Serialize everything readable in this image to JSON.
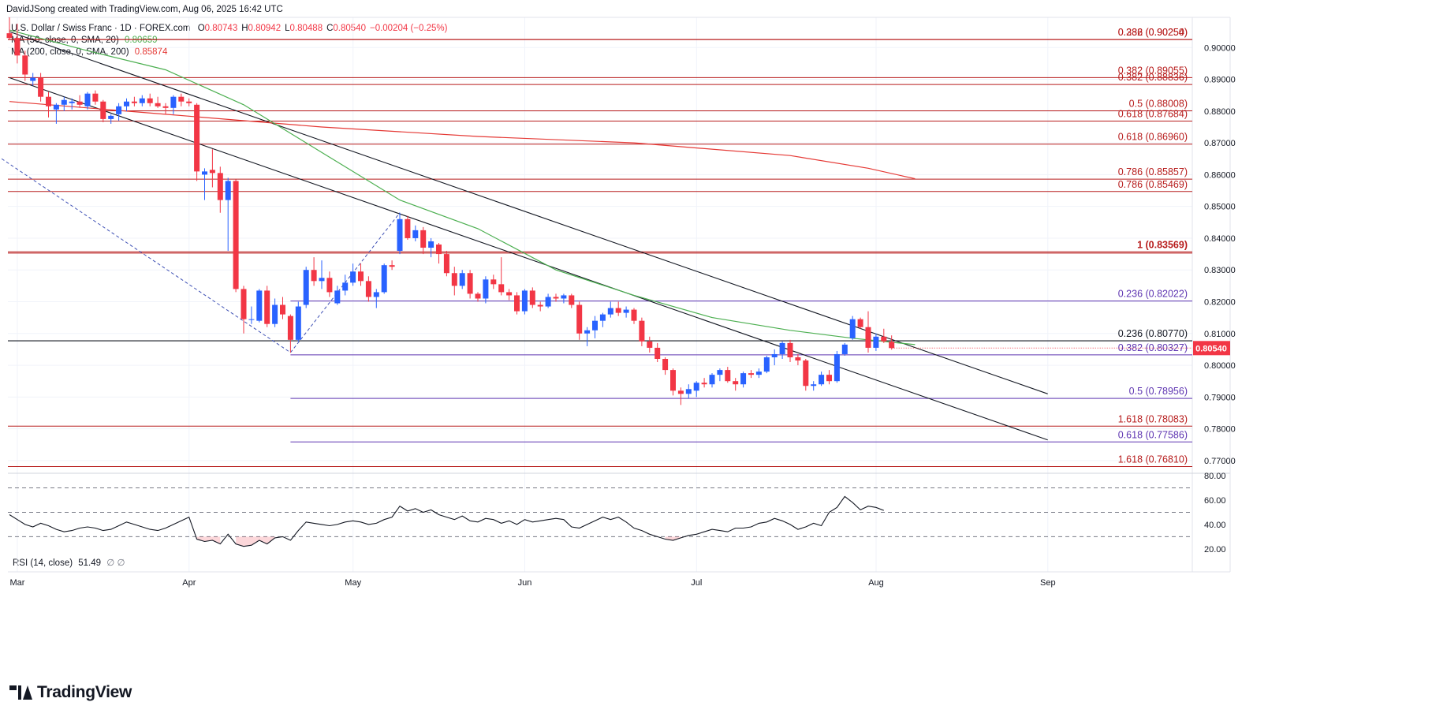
{
  "header": {
    "credit": "DavidJSong created with TradingView.com, Aug 06, 2025 16:42 UTC"
  },
  "legend": {
    "symbol": "U.S. Dollar / Swiss Franc · 1D · FOREX.com",
    "ohlc": [
      {
        "k": "O",
        "v": "0.80743"
      },
      {
        "k": "H",
        "v": "0.80942"
      },
      {
        "k": "L",
        "v": "0.80488"
      },
      {
        "k": "C",
        "v": "0.80540"
      },
      {
        "k": "",
        "v": "−0.00204 (−0.25%)"
      }
    ],
    "sma50": {
      "label": "MA (50, close, 0, SMA, 20)",
      "value": "0.80659",
      "color": "#4caf50"
    },
    "sma200": {
      "label": "MA (200, close, 0, SMA, 200)",
      "value": "0.85874",
      "color": "#e53935"
    }
  },
  "colors": {
    "up": "#2962ff",
    "down": "#f23645",
    "sma50": "#4caf50",
    "sma200": "#e53935",
    "fib_red": "#b71c1c",
    "fib_purple": "#5e35b1",
    "trend": "#131722",
    "rsi": "#131722",
    "grid": "#f0f3fa",
    "axis_text": "#131722",
    "price_badge": "#f23645"
  },
  "chart_data": {
    "type": "candlestick",
    "x_tick_labels": [
      "Mar",
      "Apr",
      "May",
      "Jun",
      "Jul",
      "Aug",
      "Sep"
    ],
    "y_tick_labels": [
      "0.77000",
      "0.78000",
      "0.79000",
      "0.80000",
      "0.81000",
      "0.82000",
      "0.83000",
      "0.84000",
      "0.85000",
      "0.86000",
      "0.87000",
      "0.88000",
      "0.89000",
      "0.90000"
    ],
    "ylim": [
      0.7665,
      0.9095
    ],
    "last_price": "0.80540",
    "candles": [
      [
        0.9045,
        0.9095,
        0.9025,
        0.903
      ],
      [
        0.903,
        0.9075,
        0.895,
        0.8975
      ],
      [
        0.8975,
        0.899,
        0.8895,
        0.8915
      ],
      [
        0.8895,
        0.892,
        0.888,
        0.8905
      ],
      [
        0.8905,
        0.892,
        0.883,
        0.8845
      ],
      [
        0.8845,
        0.886,
        0.878,
        0.8815
      ],
      [
        0.8805,
        0.8825,
        0.876,
        0.882
      ],
      [
        0.882,
        0.8845,
        0.88,
        0.8835
      ],
      [
        0.8825,
        0.884,
        0.8805,
        0.883
      ],
      [
        0.883,
        0.885,
        0.881,
        0.882
      ],
      [
        0.8815,
        0.886,
        0.8805,
        0.8855
      ],
      [
        0.8855,
        0.8865,
        0.882,
        0.883
      ],
      [
        0.883,
        0.8835,
        0.8765,
        0.8775
      ],
      [
        0.8775,
        0.879,
        0.876,
        0.8785
      ],
      [
        0.879,
        0.8825,
        0.877,
        0.8815
      ],
      [
        0.8815,
        0.884,
        0.88,
        0.883
      ],
      [
        0.883,
        0.8845,
        0.8815,
        0.8825
      ],
      [
        0.8825,
        0.885,
        0.8815,
        0.884
      ],
      [
        0.884,
        0.8855,
        0.8815,
        0.8825
      ],
      [
        0.8825,
        0.8845,
        0.881,
        0.8815
      ],
      [
        0.8815,
        0.8825,
        0.879,
        0.881
      ],
      [
        0.881,
        0.885,
        0.879,
        0.8845
      ],
      [
        0.8845,
        0.8855,
        0.8815,
        0.883
      ],
      [
        0.883,
        0.884,
        0.8815,
        0.8825
      ],
      [
        0.882,
        0.8825,
        0.858,
        0.861
      ],
      [
        0.86,
        0.862,
        0.852,
        0.861
      ],
      [
        0.8615,
        0.868,
        0.856,
        0.8605
      ],
      [
        0.8605,
        0.8625,
        0.848,
        0.852
      ],
      [
        0.852,
        0.859,
        0.836,
        0.858
      ],
      [
        0.858,
        0.8585,
        0.823,
        0.824
      ],
      [
        0.824,
        0.825,
        0.81,
        0.8145
      ],
      [
        0.8145,
        0.8185,
        0.813,
        0.8145
      ],
      [
        0.814,
        0.824,
        0.8135,
        0.8235
      ],
      [
        0.8235,
        0.825,
        0.812,
        0.813
      ],
      [
        0.813,
        0.821,
        0.812,
        0.819
      ],
      [
        0.819,
        0.8215,
        0.8145,
        0.816
      ],
      [
        0.8155,
        0.816,
        0.804,
        0.808
      ],
      [
        0.808,
        0.82,
        0.8075,
        0.8185
      ],
      [
        0.819,
        0.831,
        0.818,
        0.83
      ],
      [
        0.83,
        0.834,
        0.825,
        0.8265
      ],
      [
        0.8265,
        0.833,
        0.824,
        0.8275
      ],
      [
        0.8275,
        0.8295,
        0.8215,
        0.823
      ],
      [
        0.8195,
        0.825,
        0.819,
        0.8235
      ],
      [
        0.8235,
        0.8285,
        0.822,
        0.826
      ],
      [
        0.826,
        0.832,
        0.825,
        0.8295
      ],
      [
        0.8295,
        0.832,
        0.825,
        0.8265
      ],
      [
        0.8265,
        0.828,
        0.82,
        0.8215
      ],
      [
        0.8215,
        0.824,
        0.818,
        0.823
      ],
      [
        0.823,
        0.832,
        0.8225,
        0.8315
      ],
      [
        0.8315,
        0.833,
        0.83,
        0.831
      ],
      [
        0.836,
        0.848,
        0.835,
        0.846
      ],
      [
        0.846,
        0.847,
        0.8395,
        0.84
      ],
      [
        0.84,
        0.844,
        0.839,
        0.8425
      ],
      [
        0.8425,
        0.8435,
        0.835,
        0.837
      ],
      [
        0.837,
        0.84,
        0.834,
        0.839
      ],
      [
        0.838,
        0.8385,
        0.832,
        0.835
      ],
      [
        0.835,
        0.836,
        0.828,
        0.829
      ],
      [
        0.829,
        0.831,
        0.822,
        0.825
      ],
      [
        0.825,
        0.83,
        0.824,
        0.829
      ],
      [
        0.829,
        0.83,
        0.821,
        0.8225
      ],
      [
        0.8225,
        0.823,
        0.82,
        0.821
      ],
      [
        0.821,
        0.828,
        0.8195,
        0.827
      ],
      [
        0.827,
        0.8285,
        0.824,
        0.8255
      ],
      [
        0.8255,
        0.834,
        0.822,
        0.823
      ],
      [
        0.823,
        0.824,
        0.8205,
        0.822
      ],
      [
        0.822,
        0.823,
        0.816,
        0.817
      ],
      [
        0.817,
        0.824,
        0.816,
        0.8235
      ],
      [
        0.8235,
        0.8245,
        0.818,
        0.819
      ],
      [
        0.819,
        0.82,
        0.817,
        0.8185
      ],
      [
        0.8185,
        0.8225,
        0.818,
        0.8215
      ],
      [
        0.8215,
        0.8225,
        0.82,
        0.821
      ],
      [
        0.821,
        0.8225,
        0.8195,
        0.822
      ],
      [
        0.822,
        0.8225,
        0.818,
        0.819
      ],
      [
        0.819,
        0.82,
        0.808,
        0.81
      ],
      [
        0.81,
        0.812,
        0.806,
        0.811
      ],
      [
        0.811,
        0.8155,
        0.8085,
        0.814
      ],
      [
        0.814,
        0.8165,
        0.812,
        0.816
      ],
      [
        0.816,
        0.82,
        0.815,
        0.818
      ],
      [
        0.818,
        0.82,
        0.8155,
        0.8165
      ],
      [
        0.8165,
        0.8185,
        0.815,
        0.8175
      ],
      [
        0.8175,
        0.818,
        0.813,
        0.814
      ],
      [
        0.814,
        0.815,
        0.806,
        0.8075
      ],
      [
        0.8075,
        0.809,
        0.804,
        0.8055
      ],
      [
        0.8055,
        0.807,
        0.801,
        0.802
      ],
      [
        0.802,
        0.8025,
        0.797,
        0.7985
      ],
      [
        0.7985,
        0.799,
        0.7905,
        0.792
      ],
      [
        0.792,
        0.793,
        0.7875,
        0.791
      ],
      [
        0.791,
        0.794,
        0.7895,
        0.7925
      ],
      [
        0.792,
        0.795,
        0.79,
        0.7945
      ],
      [
        0.7945,
        0.796,
        0.793,
        0.794
      ],
      [
        0.794,
        0.7975,
        0.793,
        0.797
      ],
      [
        0.797,
        0.799,
        0.795,
        0.7985
      ],
      [
        0.7985,
        0.7995,
        0.7945,
        0.795
      ],
      [
        0.795,
        0.796,
        0.792,
        0.794
      ],
      [
        0.794,
        0.798,
        0.793,
        0.7975
      ],
      [
        0.7975,
        0.7985,
        0.796,
        0.797
      ],
      [
        0.797,
        0.799,
        0.796,
        0.798
      ],
      [
        0.798,
        0.803,
        0.7975,
        0.8025
      ],
      [
        0.8025,
        0.805,
        0.8,
        0.8035
      ],
      [
        0.8035,
        0.8075,
        0.802,
        0.807
      ],
      [
        0.807,
        0.808,
        0.801,
        0.8025
      ],
      [
        0.8025,
        0.8035,
        0.8,
        0.8015
      ],
      [
        0.8015,
        0.802,
        0.792,
        0.7935
      ],
      [
        0.7935,
        0.795,
        0.792,
        0.794
      ],
      [
        0.794,
        0.798,
        0.7935,
        0.797
      ],
      [
        0.797,
        0.7985,
        0.794,
        0.795
      ],
      [
        0.795,
        0.8045,
        0.7945,
        0.8035
      ],
      [
        0.8035,
        0.807,
        0.803,
        0.8065
      ],
      [
        0.8085,
        0.8155,
        0.808,
        0.8145
      ],
      [
        0.8145,
        0.815,
        0.8115,
        0.812
      ],
      [
        0.812,
        0.817,
        0.804,
        0.8055
      ],
      [
        0.8055,
        0.81,
        0.8045,
        0.809
      ],
      [
        0.809,
        0.8115,
        0.807,
        0.8075
      ],
      [
        0.8074,
        0.8094,
        0.8049,
        0.8054
      ]
    ],
    "sma50": [
      [
        0,
        0.9055
      ],
      [
        10,
        0.899
      ],
      [
        20,
        0.893
      ],
      [
        30,
        0.882
      ],
      [
        40,
        0.867
      ],
      [
        50,
        0.852
      ],
      [
        60,
        0.843
      ],
      [
        70,
        0.83
      ],
      [
        80,
        0.822
      ],
      [
        90,
        0.815
      ],
      [
        100,
        0.811
      ],
      [
        108,
        0.8085
      ],
      [
        116,
        0.8065
      ]
    ],
    "sma200": [
      [
        0,
        0.883
      ],
      [
        20,
        0.879
      ],
      [
        40,
        0.875
      ],
      [
        60,
        0.872
      ],
      [
        80,
        0.87
      ],
      [
        100,
        0.866
      ],
      [
        110,
        0.862
      ],
      [
        116,
        0.8587
      ]
    ],
    "trendlines": [
      {
        "from": [
          0,
          0.905
        ],
        "to": [
          133,
          0.791
        ]
      },
      {
        "from": [
          0,
          0.8905
        ],
        "to": [
          133,
          0.7765
        ]
      }
    ],
    "dashed_swings": [
      {
        "from": [
          -1,
          0.865
        ],
        "to": [
          36,
          0.804
        ]
      },
      {
        "from": [
          36,
          0.804
        ],
        "to": [
          50,
          0.848
        ]
      }
    ],
    "fib_levels": [
      {
        "label": "0.236 (0.90254)",
        "value": 0.90254,
        "color": "red",
        "from": 0
      },
      {
        "label": "0.382 (0.90250)",
        "value": 0.9025,
        "color": "red",
        "from": 0
      },
      {
        "label": "0.382 (0.89055)",
        "value": 0.89055,
        "color": "red",
        "from": 0
      },
      {
        "label": "0.382 (0.88836)",
        "value": 0.88836,
        "color": "red",
        "from": 0
      },
      {
        "label": "0.5 (0.88008)",
        "value": 0.88008,
        "color": "red",
        "from": 0
      },
      {
        "label": "0.618 (0.87684)",
        "value": 0.87684,
        "color": "red",
        "from": 0
      },
      {
        "label": "0.618 (0.86960)",
        "value": 0.8696,
        "color": "red",
        "from": 0
      },
      {
        "label": "0.786 (0.85857)",
        "value": 0.85857,
        "color": "red",
        "from": 0
      },
      {
        "label": "0.786 (0.85469)",
        "value": 0.85469,
        "color": "red",
        "from": 0
      },
      {
        "label": "1 (0.83569)",
        "value": 0.83569,
        "color": "red",
        "from": 0,
        "bold": true
      },
      {
        "label": "",
        "value": 0.8353,
        "color": "red",
        "from": 0
      },
      {
        "label": "0.236 (0.82022)",
        "value": 0.82022,
        "color": "purple",
        "from": 36
      },
      {
        "label": "0.236 (0.80770)",
        "value": 0.8077,
        "color": "black",
        "from": 0
      },
      {
        "label": "0.382 (0.80327)",
        "value": 0.80327,
        "color": "purple",
        "from": 36
      },
      {
        "label": "0.5 (0.78956)",
        "value": 0.78956,
        "color": "purple",
        "from": 36
      },
      {
        "label": "1.618 (0.78083)",
        "value": 0.78083,
        "color": "red",
        "from": 0
      },
      {
        "label": "0.618 (0.77586)",
        "value": 0.77586,
        "color": "purple",
        "from": 36
      },
      {
        "label": "1.618 (0.76810)",
        "value": 0.7681,
        "color": "red",
        "from": 0
      }
    ],
    "rsi": {
      "label": "RSI (14, close)",
      "value": "51.49",
      "extra": "∅ ∅",
      "y_tick_labels": [
        "20.00",
        "40.00",
        "60.00",
        "80.00"
      ],
      "ylim": [
        16,
        82
      ],
      "levels": [
        70,
        50,
        30
      ],
      "values": [
        48,
        44,
        40,
        38,
        41,
        39,
        36,
        34,
        35,
        37,
        38,
        37,
        35,
        36,
        39,
        42,
        40,
        38,
        36,
        35,
        37,
        40,
        43,
        46,
        28,
        26,
        27,
        24,
        32,
        24,
        22,
        23,
        27,
        24,
        29,
        30,
        27,
        35,
        42,
        41,
        40,
        39,
        40,
        42,
        43,
        42,
        40,
        41,
        44,
        46,
        55,
        51,
        53,
        50,
        52,
        48,
        46,
        44,
        47,
        43,
        42,
        45,
        44,
        41,
        43,
        40,
        44,
        42,
        43,
        44,
        45,
        44,
        38,
        37,
        40,
        43,
        46,
        44,
        46,
        42,
        37,
        35,
        32,
        30,
        28,
        27,
        29,
        31,
        32,
        34,
        36,
        35,
        34,
        37,
        37,
        38,
        41,
        42,
        45,
        43,
        40,
        36,
        38,
        41,
        39,
        50,
        54,
        63,
        58,
        52,
        55,
        54,
        51.5
      ]
    }
  }
}
